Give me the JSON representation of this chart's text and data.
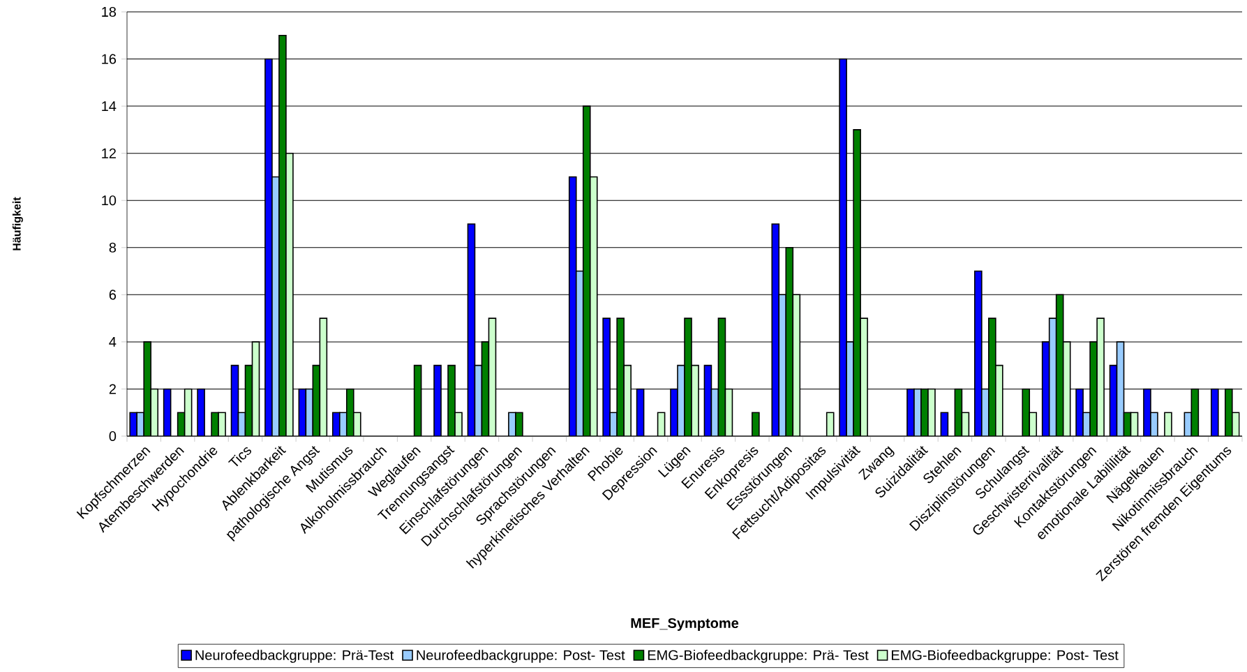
{
  "chart_data": {
    "type": "bar",
    "xlabel": "MEF_Symptome",
    "ylabel": "Häufigkeit",
    "categories": [
      "Kopfschmerzen",
      "Atembeschwerden",
      "Hypochondrie",
      "Tics",
      "Ablenkbarkeit",
      "pathologische Angst",
      "Mutismus",
      "Alkoholmissbrauch",
      "Weglaufen",
      "Trennungsangst",
      "Einschlafstörungen",
      "Durchschlafstörungen",
      "Sprachstörungen",
      "hyperkinetisches Verhalten",
      "Phobie",
      "Depression",
      "Lügen",
      "Enuresis",
      "Enkopresis",
      "Essstörungen",
      "Fettsucht/Adipositas",
      "Impulsivität",
      "Zwang",
      "Suizidalität",
      "Stehlen",
      "Disziplinstörungen",
      "Schulangst",
      "Geschwisterrivalität",
      "Kontaktstörungen",
      "emotionale Labililität",
      "Nägelkauen",
      "Nikotinmissbrauch",
      "Zerstören fremden Eigentums"
    ],
    "series": [
      {
        "name": "Neurofeedbackgruppe: Prä-Test",
        "color": "#0000ff",
        "values": [
          1,
          2,
          2,
          3,
          16,
          2,
          1,
          0,
          0,
          3,
          9,
          0,
          0,
          11,
          5,
          2,
          2,
          3,
          0,
          9,
          0,
          16,
          0,
          2,
          1,
          7,
          0,
          4,
          2,
          3,
          2,
          0,
          2
        ]
      },
      {
        "name": "Neurofeedbackgruppe: Post- Test",
        "color": "#99ccff",
        "values": [
          1,
          0,
          0,
          1,
          11,
          2,
          1,
          0,
          0,
          0,
          3,
          1,
          0,
          7,
          1,
          0,
          3,
          2,
          0,
          6,
          0,
          4,
          0,
          2,
          0,
          2,
          0,
          5,
          1,
          4,
          1,
          1,
          0
        ]
      },
      {
        "name": "EMG-Biofeedbackgruppe: Prä- Test",
        "color": "#008000",
        "values": [
          4,
          1,
          1,
          3,
          17,
          3,
          2,
          0,
          3,
          3,
          4,
          1,
          0,
          14,
          5,
          0,
          5,
          5,
          1,
          8,
          0,
          13,
          0,
          2,
          2,
          5,
          2,
          6,
          4,
          1,
          0,
          2,
          2
        ]
      },
      {
        "name": "EMG-Biofeedbackgruppe: Post- Test",
        "color": "#ccffcc",
        "values": [
          2,
          2,
          1,
          4,
          12,
          5,
          1,
          0,
          0,
          1,
          5,
          0,
          0,
          11,
          3,
          1,
          3,
          2,
          0,
          6,
          1,
          5,
          0,
          2,
          1,
          3,
          1,
          4,
          5,
          1,
          1,
          0,
          1
        ]
      }
    ],
    "ylim": [
      0,
      18
    ],
    "yticks": [
      0,
      2,
      4,
      6,
      8,
      10,
      12,
      14,
      16,
      18
    ],
    "grid": "y",
    "legend": "bottom"
  }
}
